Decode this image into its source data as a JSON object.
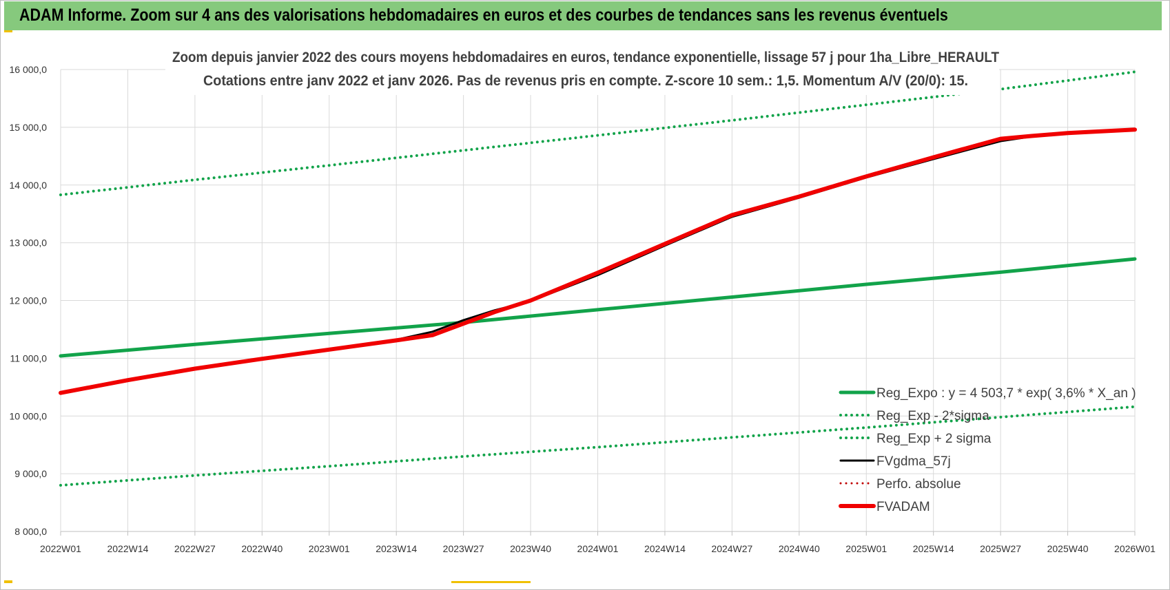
{
  "banner": {
    "title": "ADAM Informe. Zoom sur 4 ans des valorisations hebdomadaires en euros et des courbes de tendances sans les revenus éventuels"
  },
  "colors": {
    "banner_bg": "#86c97d",
    "reg_green": "#12a34a",
    "fv_black": "#000000",
    "adam_red": "#f00000",
    "perf_red": "#c00000",
    "grid": "#d9d9d9"
  },
  "chart_data": {
    "type": "line",
    "title": "Zoom depuis janvier 2022 des cours moyens hebdomadaires en euros, tendance exponentielle, lissage 57 j pour 1ha_Libre_HERAULT",
    "subtitle": "Cotations entre janv 2022 et janv 2026. Pas de revenus pris en compte. Z-score 10 sem.: 1,5. Momentum A/V (20/0):  15.",
    "xlabel": "",
    "ylabel": "",
    "ylim": [
      8000,
      16000
    ],
    "y_ticks": [
      8000,
      9000,
      10000,
      11000,
      12000,
      13000,
      14000,
      15000,
      16000
    ],
    "y_tick_labels": [
      "8 000,0",
      "9 000,0",
      "10 000,0",
      "11 000,0",
      "12 000,0",
      "13 000,0",
      "14 000,0",
      "15 000,0",
      "16 000,0"
    ],
    "x_range": [
      0,
      208
    ],
    "x_ticks": [
      0,
      13,
      26,
      39,
      52,
      65,
      78,
      91,
      104,
      117,
      130,
      143,
      156,
      169,
      182,
      195,
      208
    ],
    "x_tick_labels": [
      "2022W01",
      "2022W14",
      "2022W27",
      "2022W40",
      "2023W01",
      "2023W14",
      "2023W27",
      "2023W40",
      "2024W01",
      "2024W14",
      "2024W27",
      "2024W40",
      "2025W01",
      "2025W14",
      "2025W27",
      "2025W40",
      "2026W01"
    ],
    "grid": true,
    "legend_position": "bottom-right",
    "series": [
      {
        "name": "Reg_Expo : y = 4 503,7 * exp( 3,6% *  X_an )",
        "style": "solid",
        "color": "#12a34a",
        "width": 5,
        "x": [
          0,
          26,
          52,
          78,
          104,
          130,
          156,
          182,
          208
        ],
        "y": [
          11040,
          11240,
          11430,
          11620,
          11840,
          12060,
          12280,
          12490,
          12720
        ]
      },
      {
        "name": "Reg_Exp - 2*sigma",
        "style": "dotted",
        "color": "#12a34a",
        "width": 4,
        "x": [
          0,
          26,
          52,
          78,
          104,
          130,
          156,
          182,
          208
        ],
        "y": [
          13830,
          14090,
          14340,
          14600,
          14860,
          15120,
          15390,
          15660,
          15960
        ]
      },
      {
        "name": "Reg_Exp + 2 sigma",
        "style": "dotted",
        "color": "#12a34a",
        "width": 4,
        "x": [
          0,
          26,
          52,
          78,
          104,
          130,
          156,
          182,
          208
        ],
        "y": [
          8800,
          8970,
          9130,
          9300,
          9460,
          9630,
          9800,
          9980,
          10160
        ]
      },
      {
        "name": "FVgdma_57j",
        "style": "solid",
        "color": "#000000",
        "width": 3,
        "x": [
          0,
          13,
          26,
          39,
          52,
          65,
          72,
          78,
          84,
          91,
          104,
          117,
          130,
          143,
          156,
          169,
          182,
          188,
          195,
          208
        ],
        "y": [
          10400,
          10620,
          10820,
          10990,
          11150,
          11320,
          11460,
          11660,
          11830,
          11990,
          12440,
          12950,
          13450,
          13780,
          14130,
          14450,
          14760,
          14840,
          14890,
          14960
        ]
      },
      {
        "name": "Perfo. absolue",
        "style": "dotted",
        "color": "#c00000",
        "width": 3,
        "x": [],
        "y": []
      },
      {
        "name": "FVADAM",
        "style": "solid",
        "color": "#f00000",
        "width": 6,
        "x": [
          0,
          13,
          26,
          39,
          52,
          65,
          72,
          78,
          84,
          91,
          104,
          117,
          130,
          143,
          156,
          169,
          182,
          188,
          195,
          208
        ],
        "y": [
          10400,
          10620,
          10820,
          10990,
          11150,
          11310,
          11400,
          11600,
          11800,
          12000,
          12480,
          12980,
          13480,
          13800,
          14150,
          14480,
          14800,
          14850,
          14900,
          14960
        ]
      }
    ]
  }
}
